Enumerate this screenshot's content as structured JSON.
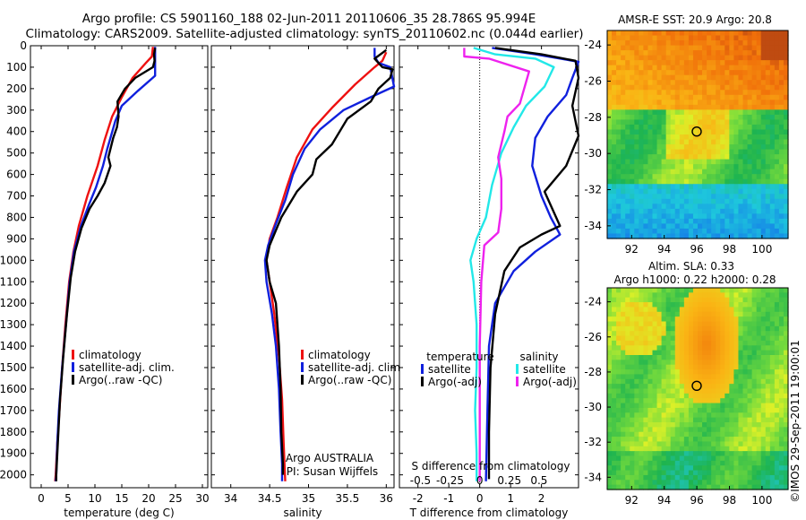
{
  "title_line1": "Argo profile: CS 5901160_188 02-Jun-2011 20110606_35 28.786S 95.994E",
  "title_line2": "Climatology: CARS2009. Satellite-adjusted climatology: synTS_20110602.nc (0.044d earlier)",
  "colors": {
    "climatology": "#ee1111",
    "satellite": "#1020dd",
    "argo": "#000000",
    "sal_satellite": "#22e8e8",
    "sal_argo": "#ee22ee"
  },
  "chart_data": [
    {
      "type": "line",
      "xlabel": "temperature (deg C)",
      "ylabel": "",
      "xlim": [
        -2,
        31
      ],
      "ylim": [
        2060,
        0
      ],
      "xticks": [
        0,
        5,
        10,
        15,
        20,
        25,
        30
      ],
      "yticks": [
        0,
        100,
        200,
        300,
        400,
        500,
        600,
        700,
        800,
        900,
        1000,
        1100,
        1200,
        1300,
        1400,
        1500,
        1600,
        1700,
        1800,
        1900,
        2000
      ],
      "legend": [
        "climatology",
        "satellite-adj. clim.",
        "Argo(..raw -QC)"
      ],
      "series": [
        {
          "name": "climatology",
          "color": "climatology",
          "points": [
            [
              20.8,
              5
            ],
            [
              20.6,
              50
            ],
            [
              19.5,
              80
            ],
            [
              17,
              150
            ],
            [
              15,
              240
            ],
            [
              13.2,
              330
            ],
            [
              11.8,
              440
            ],
            [
              10.5,
              560
            ],
            [
              8.6,
              700
            ],
            [
              7,
              840
            ],
            [
              6,
              960
            ],
            [
              5.2,
              1100
            ],
            [
              4.5,
              1300
            ],
            [
              3.9,
              1500
            ],
            [
              3.4,
              1700
            ],
            [
              3,
              1850
            ],
            [
              2.7,
              2000
            ],
            [
              2.6,
              2030
            ]
          ]
        },
        {
          "name": "satellite-adj. clim.",
          "color": "satellite",
          "points": [
            [
              21.2,
              5
            ],
            [
              21.2,
              60
            ],
            [
              21.2,
              140
            ],
            [
              18,
              210
            ],
            [
              15,
              280
            ],
            [
              13.8,
              350
            ],
            [
              13,
              420
            ],
            [
              12.3,
              480
            ],
            [
              11.5,
              560
            ],
            [
              10.2,
              660
            ],
            [
              8.9,
              740
            ],
            [
              7.4,
              840
            ],
            [
              6.1,
              960
            ],
            [
              5.3,
              1100
            ],
            [
              4.6,
              1300
            ],
            [
              3.9,
              1500
            ],
            [
              3.3,
              1700
            ],
            [
              3,
              1850
            ],
            [
              2.8,
              2000
            ],
            [
              2.7,
              2030
            ]
          ]
        },
        {
          "name": "Argo(..raw -QC)",
          "color": "argo",
          "points": [
            [
              21.2,
              10
            ],
            [
              21,
              40
            ],
            [
              21.1,
              70
            ],
            [
              20.8,
              100
            ],
            [
              17.5,
              150
            ],
            [
              15.6,
              200
            ],
            [
              14.2,
              260
            ],
            [
              14.4,
              330
            ],
            [
              14.1,
              380
            ],
            [
              13.4,
              430
            ],
            [
              12.5,
              520
            ],
            [
              12.9,
              560
            ],
            [
              11.8,
              640
            ],
            [
              10.5,
              700
            ],
            [
              9,
              760
            ],
            [
              7.5,
              850
            ],
            [
              6.3,
              960
            ],
            [
              5.5,
              1080
            ],
            [
              4.8,
              1250
            ],
            [
              4.1,
              1450
            ],
            [
              3.5,
              1650
            ],
            [
              3.1,
              1850
            ],
            [
              2.8,
              2000
            ],
            [
              2.8,
              2030
            ]
          ]
        }
      ]
    },
    {
      "type": "line",
      "xlabel": "salinity",
      "ylabel": "",
      "xlim": [
        33.75,
        36.1
      ],
      "ylim": [
        2060,
        0
      ],
      "xticks": [
        34,
        34.5,
        35,
        35.5,
        36
      ],
      "legend": [
        "climatology",
        "satellite-adj. clim.",
        "Argo(..raw -QC)"
      ],
      "annotations": [
        "Argo AUSTRALIA",
        "PI: Susan Wijffels"
      ],
      "series": [
        {
          "name": "climatology",
          "color": "climatology",
          "points": [
            [
              36,
              30
            ],
            [
              35.95,
              70
            ],
            [
              35.85,
              100
            ],
            [
              35.6,
              180
            ],
            [
              35.3,
              290
            ],
            [
              35.05,
              390
            ],
            [
              34.85,
              520
            ],
            [
              34.72,
              660
            ],
            [
              34.6,
              800
            ],
            [
              34.5,
              900
            ],
            [
              34.46,
              1000
            ],
            [
              34.5,
              1100
            ],
            [
              34.56,
              1250
            ],
            [
              34.62,
              1450
            ],
            [
              34.66,
              1650
            ],
            [
              34.68,
              1850
            ],
            [
              34.7,
              2030
            ]
          ]
        },
        {
          "name": "satellite-adj. clim.",
          "color": "satellite",
          "points": [
            [
              35.85,
              10
            ],
            [
              35.85,
              50
            ],
            [
              35.9,
              80
            ],
            [
              36.05,
              100
            ],
            [
              36.1,
              190
            ],
            [
              35.8,
              240
            ],
            [
              35.45,
              300
            ],
            [
              35.15,
              390
            ],
            [
              34.95,
              480
            ],
            [
              34.8,
              600
            ],
            [
              34.7,
              720
            ],
            [
              34.58,
              830
            ],
            [
              34.48,
              930
            ],
            [
              34.44,
              1000
            ],
            [
              34.46,
              1100
            ],
            [
              34.53,
              1250
            ],
            [
              34.58,
              1400
            ],
            [
              34.62,
              1600
            ],
            [
              34.64,
              1800
            ],
            [
              34.66,
              1950
            ],
            [
              34.66,
              2030
            ]
          ]
        },
        {
          "name": "Argo(..raw -QC)",
          "color": "argo",
          "points": [
            [
              36,
              20
            ],
            [
              35.85,
              60
            ],
            [
              35.95,
              100
            ],
            [
              36.08,
              110
            ],
            [
              36.05,
              150
            ],
            [
              35.9,
              200
            ],
            [
              35.8,
              260
            ],
            [
              35.5,
              340
            ],
            [
              35.3,
              460
            ],
            [
              35.1,
              530
            ],
            [
              35.05,
              600
            ],
            [
              34.85,
              680
            ],
            [
              34.65,
              800
            ],
            [
              34.5,
              930
            ],
            [
              34.46,
              1000
            ],
            [
              34.5,
              1100
            ],
            [
              34.58,
              1200
            ],
            [
              34.62,
              1400
            ],
            [
              34.64,
              1600
            ],
            [
              34.65,
              1800
            ],
            [
              34.67,
              1950
            ],
            [
              34.67,
              2000
            ]
          ]
        }
      ]
    },
    {
      "type": "line",
      "xlabel": "T difference from climatology",
      "xlabel_top": "S difference from climatology",
      "ylabel": "",
      "xlim": [
        -2.6,
        3.2
      ],
      "ylim": [
        2060,
        0
      ],
      "xticks": [
        -2,
        -1,
        0,
        1,
        2
      ],
      "xticks_top": [
        "-0.5",
        "-0.25",
        "0",
        "0.25",
        "0.5"
      ],
      "legend_headers": [
        "temperature",
        "salinity"
      ],
      "legend": [
        "satellite",
        "Argo(-adj)",
        "satellite",
        "Argo(-adj)"
      ],
      "series": [
        {
          "name": "satellite",
          "group": "temperature",
          "color": "satellite",
          "points": [
            [
              0.4,
              10
            ],
            [
              1.8,
              40
            ],
            [
              3.2,
              75
            ],
            [
              3,
              150
            ],
            [
              2.8,
              230
            ],
            [
              2.2,
              330
            ],
            [
              1.8,
              430
            ],
            [
              1.7,
              560
            ],
            [
              2,
              700
            ],
            [
              2.3,
              800
            ],
            [
              2.6,
              880
            ],
            [
              1.8,
              960
            ],
            [
              1.1,
              1050
            ],
            [
              0.5,
              1200
            ],
            [
              0.3,
              1400
            ],
            [
              0.25,
              1700
            ],
            [
              0.2,
              2030
            ]
          ]
        },
        {
          "name": "Argo(-adj)",
          "group": "temperature",
          "color": "argo",
          "points": [
            [
              0.5,
              10
            ],
            [
              2,
              40
            ],
            [
              3.1,
              70
            ],
            [
              3.2,
              150
            ],
            [
              3,
              280
            ],
            [
              3.2,
              420
            ],
            [
              2.8,
              560
            ],
            [
              2.1,
              680
            ],
            [
              2.6,
              840
            ],
            [
              2,
              880
            ],
            [
              1.3,
              940
            ],
            [
              0.8,
              1050
            ],
            [
              0.5,
              1250
            ],
            [
              0.35,
              1500
            ],
            [
              0.3,
              1800
            ],
            [
              0.3,
              2020
            ]
          ]
        },
        {
          "name": "satellite",
          "group": "salinity",
          "color": "sal_satellite",
          "points": [
            [
              -0.2,
              10
            ],
            [
              0.5,
              40
            ],
            [
              1.8,
              60
            ],
            [
              2.4,
              100
            ],
            [
              2.1,
              190
            ],
            [
              1.5,
              280
            ],
            [
              1.1,
              380
            ],
            [
              0.7,
              500
            ],
            [
              0.4,
              650
            ],
            [
              0.2,
              800
            ],
            [
              -0.1,
              900
            ],
            [
              -0.3,
              1000
            ],
            [
              -0.2,
              1100
            ],
            [
              -0.1,
              1300
            ],
            [
              -0.1,
              1500
            ],
            [
              -0.15,
              1700
            ],
            [
              -0.1,
              1900
            ],
            [
              -0.1,
              2030
            ]
          ]
        },
        {
          "name": "Argo(-adj)",
          "group": "salinity",
          "color": "sal_argo",
          "points": [
            [
              -0.5,
              10
            ],
            [
              -0.5,
              50
            ],
            [
              0.3,
              60
            ],
            [
              1.6,
              120
            ],
            [
              1.3,
              270
            ],
            [
              0.9,
              330
            ],
            [
              0.8,
              400
            ],
            [
              0.6,
              520
            ],
            [
              0.7,
              620
            ],
            [
              0.7,
              760
            ],
            [
              0.6,
              870
            ],
            [
              0.15,
              930
            ],
            [
              0.05,
              1100
            ],
            [
              0,
              1400
            ],
            [
              0,
              1700
            ],
            [
              0,
              2000
            ],
            [
              0,
              2030
            ]
          ]
        }
      ]
    },
    {
      "type": "heatmap",
      "title": "AMSR-E SST: 20.9 Argo: 20.8",
      "xlim": [
        90.5,
        101.6
      ],
      "ylim": [
        -34.7,
        -23.2
      ],
      "xticks": [
        92,
        94,
        96,
        98,
        100
      ],
      "yticks": [
        -24,
        -26,
        -28,
        -30,
        -32,
        -34
      ],
      "marker": [
        95.994,
        -28.786
      ]
    },
    {
      "type": "heatmap",
      "title_line1": "Altim. SLA: 0.33",
      "title_line2": "Argo h1000: 0.22 h2000: 0.28",
      "xlim": [
        90.5,
        101.6
      ],
      "ylim": [
        -34.7,
        -23.2
      ],
      "xticks": [
        92,
        94,
        96,
        98,
        100
      ],
      "yticks": [
        -24,
        -26,
        -28,
        -30,
        -32,
        -34
      ],
      "marker": [
        95.994,
        -28.786
      ]
    }
  ],
  "credit": "©IMOS 29-Sep-2011 19:00:01"
}
